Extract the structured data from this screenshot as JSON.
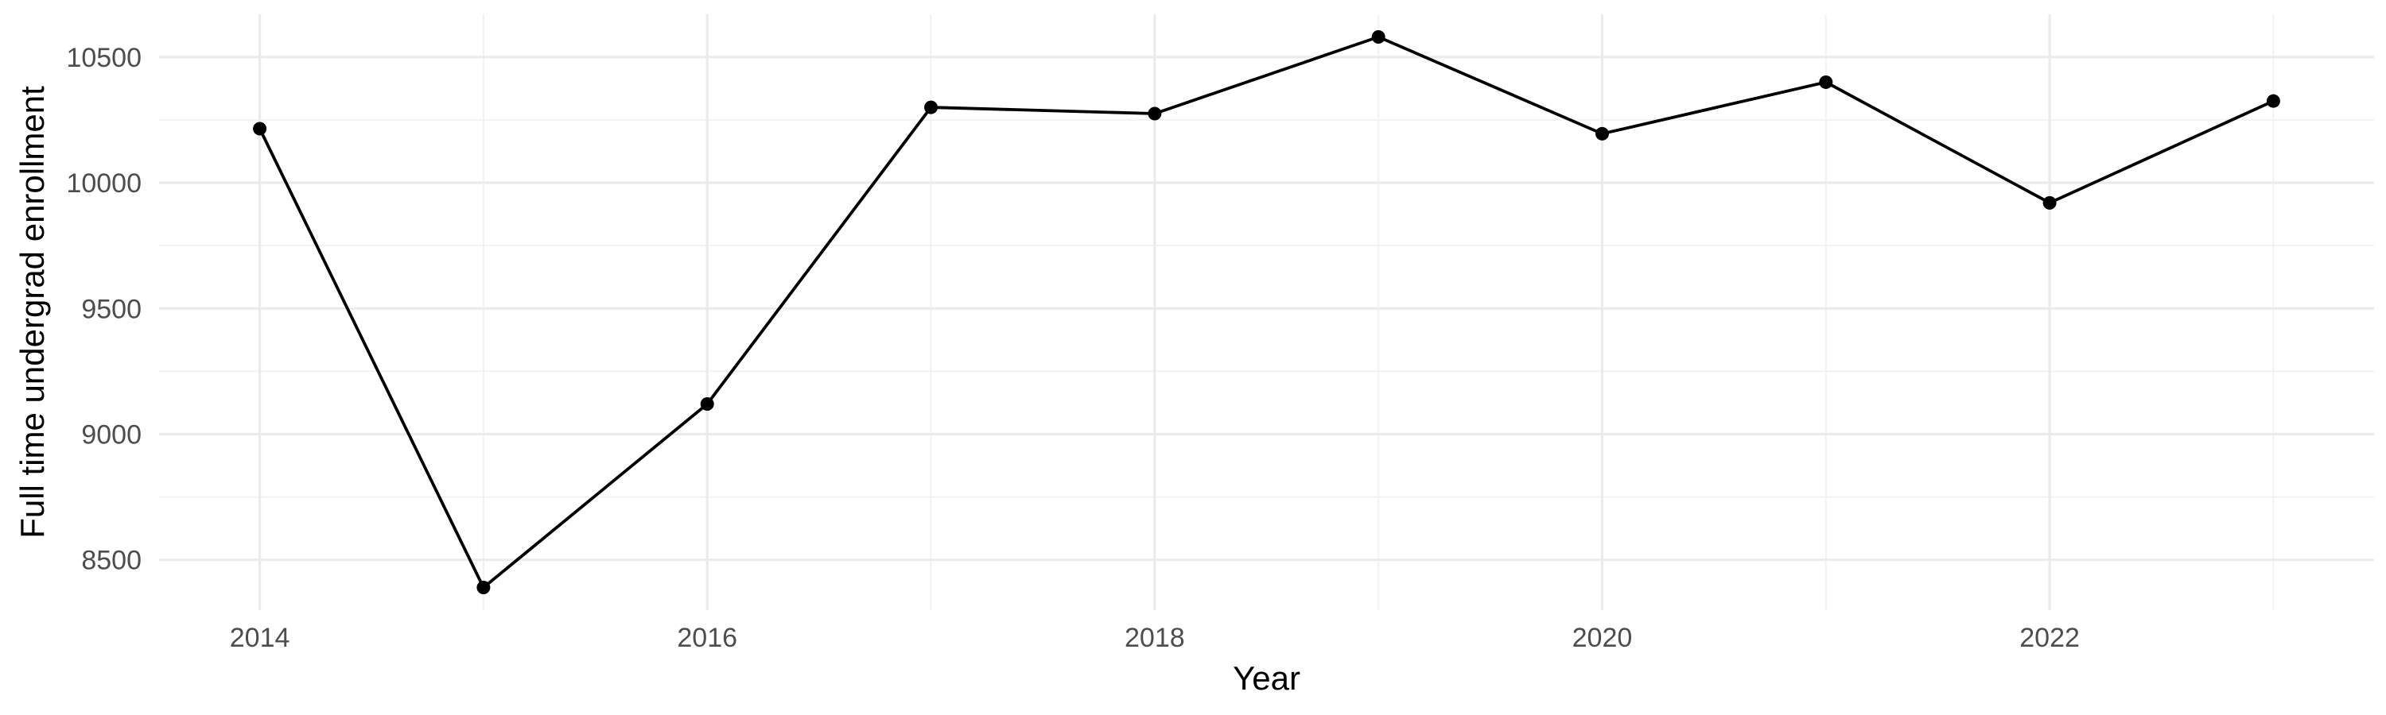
{
  "chart_data": {
    "type": "line",
    "title": "",
    "xlabel": "Year",
    "ylabel": "Full time undergrad enrollment",
    "x": [
      2014,
      2015,
      2016,
      2017,
      2018,
      2019,
      2020,
      2021,
      2022,
      2023
    ],
    "series": [
      {
        "values": [
          10215,
          8390,
          9120,
          10300,
          10275,
          10580,
          10195,
          10400,
          9920,
          10325
        ]
      }
    ],
    "x_ticks": [
      2014,
      2016,
      2018,
      2020,
      2022
    ],
    "x_tick_labels": [
      "2014",
      "2016",
      "2018",
      "2020",
      "2022"
    ],
    "y_ticks": [
      8500,
      9000,
      9500,
      10000,
      10500
    ],
    "y_tick_labels": [
      "8500",
      "9000",
      "9500",
      "10000",
      "10500"
    ],
    "xlim": [
      2013.55,
      2023.45
    ],
    "ylim": [
      8300,
      10670
    ],
    "grid": true,
    "legend": "none",
    "colors": {
      "line": "#000000",
      "point": "#000000",
      "grid_major": "#ebebeb",
      "grid_minor": "#f2f2f2",
      "tick_text": "#4d4d4d",
      "title_text": "#000000"
    }
  }
}
